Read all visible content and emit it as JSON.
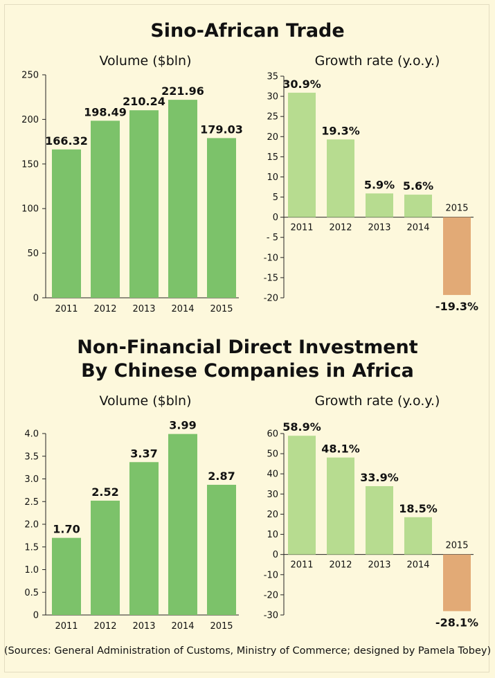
{
  "section1": {
    "title": "Sino-African Trade"
  },
  "section2": {
    "title_line1": "Non-Financial Direct Investment",
    "title_line2": "By Chinese Companies in Africa"
  },
  "colors": {
    "bar_dark": "#7cc26a",
    "bar_light": "#b7dc90",
    "bar_negative": "#e2aa76",
    "background": "#fdf8dc"
  },
  "chart_data": [
    {
      "type": "bar",
      "title": "Volume ($bln)",
      "categories": [
        "2011",
        "2012",
        "2013",
        "2014",
        "2015"
      ],
      "values": [
        166.32,
        198.49,
        210.24,
        221.96,
        179.03
      ],
      "value_labels": [
        "166.32",
        "198.49",
        "210.24",
        "221.96",
        "179.03"
      ],
      "ylim": [
        0,
        250
      ],
      "yticks": [
        0,
        50,
        100,
        150,
        200,
        250
      ],
      "ytick_labels": [
        "0",
        "50",
        "100",
        "150",
        "200",
        "250"
      ]
    },
    {
      "type": "bar",
      "title": "Growth rate (y.o.y.)",
      "categories": [
        "2011",
        "2012",
        "2013",
        "2014",
        "2015"
      ],
      "values": [
        30.9,
        19.3,
        5.9,
        5.6,
        -19.3
      ],
      "value_labels": [
        "30.9%",
        "19.3%",
        "5.9%",
        "5.6%",
        "-19.3%"
      ],
      "ylim": [
        -20,
        35
      ],
      "yticks": [
        35,
        30,
        25,
        20,
        15,
        10,
        5,
        0,
        -5,
        -10,
        -15,
        -20
      ],
      "ytick_labels": [
        "35",
        "30",
        "25",
        "20",
        "15",
        "10",
        "5",
        "0",
        "- 5",
        "-10",
        "-15",
        "-20"
      ]
    },
    {
      "type": "bar",
      "title": "Volume ($bln)",
      "categories": [
        "2011",
        "2012",
        "2013",
        "2014",
        "2015"
      ],
      "values": [
        1.7,
        2.52,
        3.37,
        3.99,
        2.87
      ],
      "value_labels": [
        "1.70",
        "2.52",
        "3.37",
        "3.99",
        "2.87"
      ],
      "ylim": [
        0,
        4.0
      ],
      "yticks": [
        0,
        0.5,
        1.0,
        1.5,
        2.0,
        2.5,
        3.0,
        3.5,
        4.0
      ],
      "ytick_labels": [
        "0",
        "0.5",
        "1.0",
        "1.5",
        "2.0",
        "2.5",
        "3.0",
        "3.5",
        "4.0"
      ]
    },
    {
      "type": "bar",
      "title": "Growth rate (y.o.y.)",
      "categories": [
        "2011",
        "2012",
        "2013",
        "2014",
        "2015"
      ],
      "values": [
        58.9,
        48.1,
        33.9,
        18.5,
        -28.1
      ],
      "value_labels": [
        "58.9%",
        "48.1%",
        "33.9%",
        "18.5%",
        "-28.1%"
      ],
      "ylim": [
        -30,
        60
      ],
      "yticks": [
        60,
        50,
        40,
        30,
        20,
        10,
        0,
        -10,
        -20,
        -30
      ],
      "ytick_labels": [
        "60",
        "50",
        "40",
        "30",
        "20",
        "10",
        "0",
        "-10",
        "-20",
        "-30"
      ]
    }
  ],
  "source_text": "(Sources: General Administration of Customs, Ministry of Commerce; designed by Pamela Tobey)"
}
